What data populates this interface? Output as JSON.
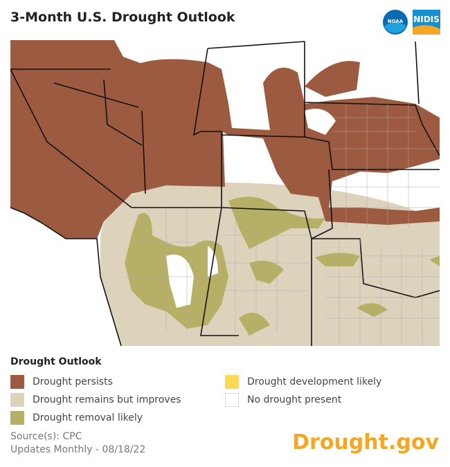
{
  "header": {
    "title": "3-Month U.S. Drought Outlook",
    "logos": [
      "NOAA",
      "NIDIS"
    ]
  },
  "legend": {
    "title": "Drought Outlook",
    "items": [
      "Drought persists",
      "Drought remains but improves",
      "Drought removal likely",
      "Drought development likely",
      "No drought present"
    ]
  },
  "footer": {
    "source": "Source(s): CPC",
    "updates": "Updates Monthly - 08/18/22",
    "brand": "Drought.gov"
  }
}
